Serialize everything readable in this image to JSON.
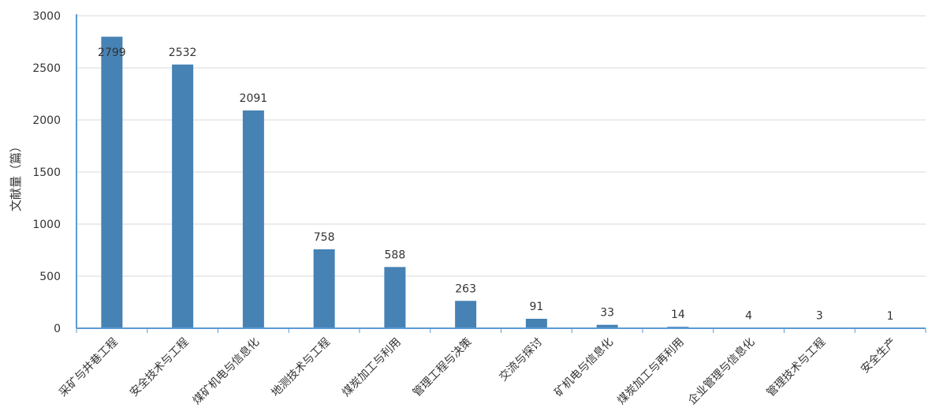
{
  "chart_data": {
    "type": "bar",
    "title": "",
    "xlabel": "",
    "ylabel": "文献量（篇）",
    "ylim": [
      0,
      3000
    ],
    "yticks": [
      0,
      500,
      1000,
      1500,
      2000,
      2500,
      3000
    ],
    "grid": true,
    "categories": [
      "采矿与井巷工程",
      "安全技术与工程",
      "煤矿机电与信息化",
      "地测技术与工程",
      "煤炭加工与利用",
      "管理工程与决策",
      "交流与探讨",
      "矿机电与信息化",
      "煤炭加工与再利用",
      "企业管理与信息化",
      "管理技术与工程",
      "安全生产"
    ],
    "values": [
      2799,
      2532,
      2091,
      758,
      588,
      263,
      91,
      33,
      14,
      4,
      3,
      1
    ],
    "colors": {
      "bar": "#4682b4",
      "axis": "#5b9bd5",
      "grid": "#d9d9d9"
    }
  }
}
